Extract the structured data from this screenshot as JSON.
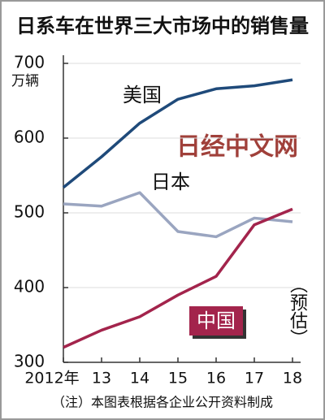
{
  "chart_data": {
    "type": "line",
    "title": "日系车在世界三大市场中的销售量",
    "y_unit": "万辆",
    "categories": [
      "2012年",
      "13",
      "14",
      "15",
      "16",
      "17",
      "18"
    ],
    "series": [
      {
        "name": "美国",
        "color": "#1f4a7a",
        "values": [
          534,
          575,
          620,
          652,
          666,
          670,
          678
        ]
      },
      {
        "name": "日本",
        "color": "#9aa5c0",
        "values": [
          512,
          509,
          527,
          475,
          468,
          493,
          488
        ]
      },
      {
        "name": "中国",
        "color": "#a3244c",
        "values": [
          320,
          343,
          361,
          390,
          415,
          484,
          505
        ]
      }
    ],
    "ylim": [
      300,
      700
    ],
    "yticks": [
      300,
      400,
      500,
      600,
      700
    ],
    "grid": true,
    "watermark": "日经中文网",
    "annotation": "（预估）",
    "note": "（注）本图表根据各企业公开资料制成"
  }
}
